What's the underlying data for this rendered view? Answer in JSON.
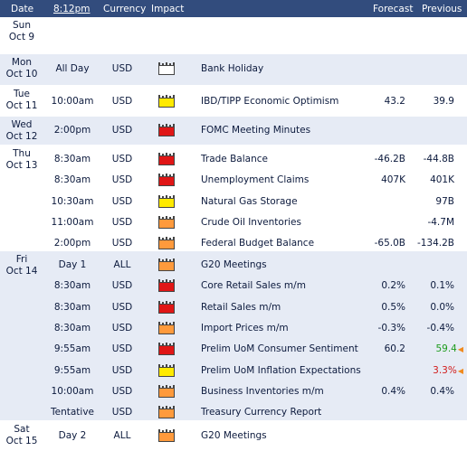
{
  "header": {
    "date": "Date",
    "time": "8:12pm",
    "currency": "Currency",
    "impact": "Impact",
    "forecast": "Forecast",
    "previous": "Previous"
  },
  "impact_colors": {
    "high": "#e01616",
    "medium": "#ff9a3c",
    "low": "#ffea00",
    "non_economic": "#ffffff"
  },
  "days": [
    {
      "dow": "Sun",
      "date": "Oct 9",
      "events": []
    },
    {
      "dow": "Mon",
      "date": "Oct 10",
      "events": [
        {
          "time": "All Day",
          "currency": "USD",
          "impact": "non-economic",
          "title": "Bank Holiday",
          "forecast": "",
          "previous": ""
        }
      ]
    },
    {
      "dow": "Tue",
      "date": "Oct 11",
      "events": [
        {
          "time": "10:00am",
          "currency": "USD",
          "impact": "low",
          "title": "IBD/TIPP Economic Optimism",
          "forecast": "43.2",
          "previous": "39.9"
        }
      ]
    },
    {
      "dow": "Wed",
      "date": "Oct 12",
      "events": [
        {
          "time": "2:00pm",
          "currency": "USD",
          "impact": "high",
          "title": "FOMC Meeting Minutes",
          "forecast": "",
          "previous": ""
        }
      ]
    },
    {
      "dow": "Thu",
      "date": "Oct 13",
      "events": [
        {
          "time": "8:30am",
          "currency": "USD",
          "impact": "high",
          "title": "Trade Balance",
          "forecast": "-46.2B",
          "previous": "-44.8B"
        },
        {
          "time": "8:30am",
          "currency": "USD",
          "impact": "high",
          "title": "Unemployment Claims",
          "forecast": "407K",
          "previous": "401K"
        },
        {
          "time": "10:30am",
          "currency": "USD",
          "impact": "low",
          "title": "Natural Gas Storage",
          "forecast": "",
          "previous": "97B"
        },
        {
          "time": "11:00am",
          "currency": "USD",
          "impact": "medium",
          "title": "Crude Oil Inventories",
          "forecast": "",
          "previous": "-4.7M"
        },
        {
          "time": "2:00pm",
          "currency": "USD",
          "impact": "medium",
          "title": "Federal Budget Balance",
          "forecast": "-65.0B",
          "previous": "-134.2B"
        }
      ]
    },
    {
      "dow": "Fri",
      "date": "Oct 14",
      "events": [
        {
          "time": "Day 1",
          "currency": "ALL",
          "impact": "medium",
          "title": "G20 Meetings",
          "forecast": "",
          "previous": ""
        },
        {
          "time": "8:30am",
          "currency": "USD",
          "impact": "high",
          "title": "Core Retail Sales m/m",
          "forecast": "0.2%",
          "previous": "0.1%"
        },
        {
          "time": "8:30am",
          "currency": "USD",
          "impact": "high",
          "title": "Retail Sales m/m",
          "forecast": "0.5%",
          "previous": "0.0%"
        },
        {
          "time": "8:30am",
          "currency": "USD",
          "impact": "medium",
          "title": "Import Prices m/m",
          "forecast": "-0.3%",
          "previous": "-0.4%"
        },
        {
          "time": "9:55am",
          "currency": "USD",
          "impact": "high",
          "title": "Prelim UoM Consumer Sentiment",
          "forecast": "60.2",
          "previous": "59.4",
          "previous_status": "better"
        },
        {
          "time": "9:55am",
          "currency": "USD",
          "impact": "low",
          "title": "Prelim UoM Inflation Expectations",
          "forecast": "",
          "previous": "3.3%",
          "previous_status": "worse"
        },
        {
          "time": "10:00am",
          "currency": "USD",
          "impact": "medium",
          "title": "Business Inventories m/m",
          "forecast": "0.4%",
          "previous": "0.4%"
        },
        {
          "time": "Tentative",
          "currency": "USD",
          "impact": "medium",
          "title": "Treasury Currency Report",
          "forecast": "",
          "previous": ""
        }
      ]
    },
    {
      "dow": "Sat",
      "date": "Oct 15",
      "events": [
        {
          "time": "Day 2",
          "currency": "ALL",
          "impact": "medium",
          "title": "G20 Meetings",
          "forecast": "",
          "previous": ""
        }
      ]
    }
  ]
}
